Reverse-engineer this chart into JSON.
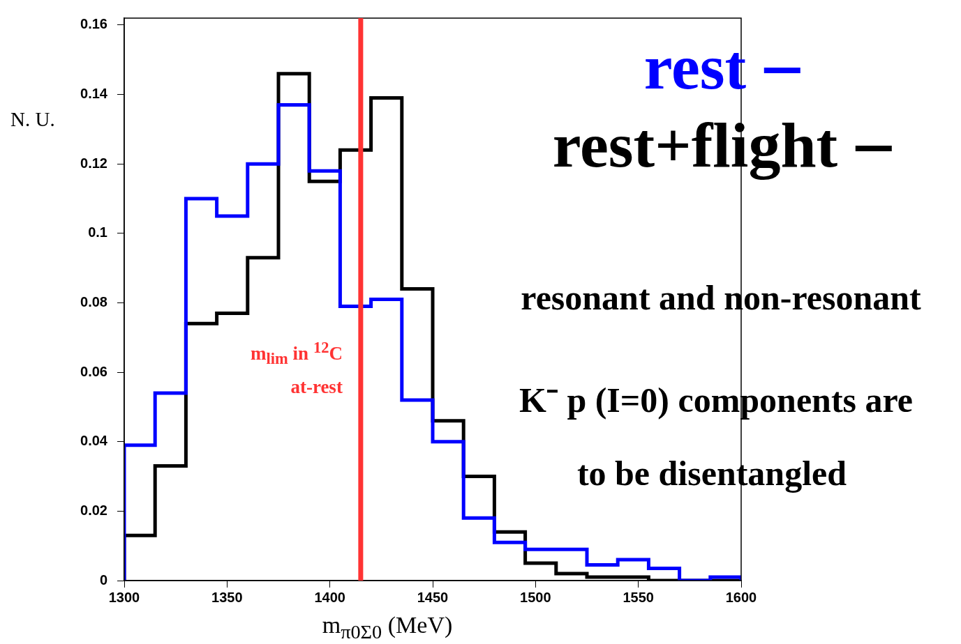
{
  "chart_data": {
    "type": "histogram",
    "xlabel": "m$_{π0Σ0}$ (MeV)",
    "ylabel": "N. U.",
    "bins": [
      1300,
      1315,
      1330,
      1345,
      1360,
      1375,
      1390,
      1405,
      1420,
      1435,
      1450,
      1465,
      1480,
      1495,
      1510,
      1525,
      1540,
      1555,
      1570,
      1585,
      1600
    ],
    "series": [
      {
        "name": "rest",
        "color": "#0000ff",
        "values": [
          0.039,
          0.054,
          0.11,
          0.105,
          0.12,
          0.137,
          0.118,
          0.079,
          0.081,
          0.052,
          0.04,
          0.018,
          0.011,
          0.009,
          0.009,
          0.0045,
          0.006,
          0.0035,
          0,
          0.001
        ]
      },
      {
        "name": "rest+flight",
        "color": "#000000",
        "values": [
          0.013,
          0.033,
          0.074,
          0.077,
          0.093,
          0.146,
          0.115,
          0.124,
          0.139,
          0.084,
          0.046,
          0.03,
          0.014,
          0.005,
          0.002,
          0.001,
          0.001,
          0,
          0,
          0
        ]
      }
    ],
    "xlim": [
      1300,
      1600
    ],
    "xticks": [
      1300,
      1350,
      1400,
      1450,
      1500,
      1550,
      1600
    ],
    "ylim": [
      0,
      0.162
    ],
    "yticks": [
      0,
      0.02,
      0.04,
      0.06,
      0.08,
      0.1,
      0.12,
      0.14,
      0.16
    ],
    "ref_lines": [
      {
        "axis": "x",
        "value": 1415,
        "label": "m$_{lim}$ in $^{12}$C\nat-rest",
        "color": "#ff3333"
      }
    ],
    "annotations": [
      "resonant and non-resonant",
      "K⁻ p (I=0) components are",
      "to be disentangled"
    ],
    "legend": "top right",
    "grid": false
  }
}
